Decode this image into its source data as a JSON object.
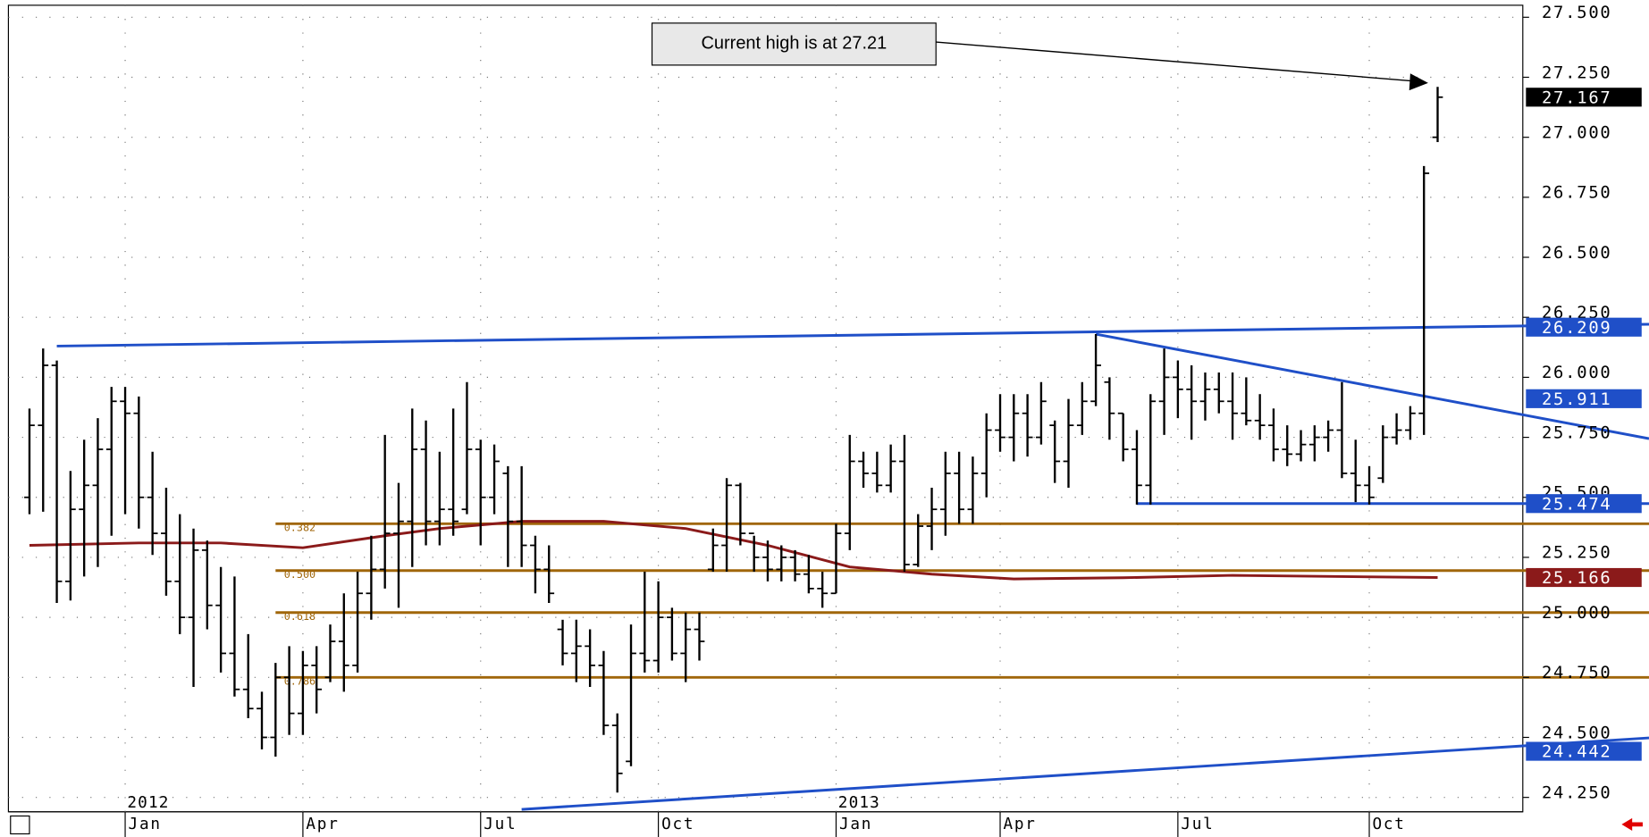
{
  "chart_data": {
    "type": "ohlc",
    "color": "#000000",
    "categories": [
      null,
      null,
      null,
      null,
      null,
      null,
      null,
      "Jan",
      null,
      null,
      null,
      null,
      null,
      null,
      null,
      null,
      null,
      null,
      null,
      null,
      "Apr",
      null,
      null,
      null,
      null,
      null,
      null,
      null,
      null,
      null,
      null,
      null,
      null,
      "Jul",
      null,
      null,
      null,
      null,
      null,
      null,
      null,
      null,
      null,
      null,
      null,
      null,
      "Oct",
      null,
      null,
      null,
      null,
      null,
      null,
      null,
      null,
      null,
      null,
      null,
      null,
      "Jan",
      null,
      null,
      null,
      null,
      null,
      null,
      null,
      null,
      null,
      null,
      null,
      "Apr",
      null,
      null,
      null,
      null,
      null,
      null,
      null,
      null,
      null,
      null,
      null,
      null,
      "Jul",
      null,
      null,
      null,
      null,
      null,
      null,
      null,
      null,
      null,
      null,
      null,
      null,
      null,
      "Oct",
      null,
      null,
      null,
      null,
      null
    ],
    "open": [
      25.5,
      25.8,
      26.05,
      25.15,
      25.45,
      25.55,
      25.7,
      25.9,
      25.85,
      25.5,
      25.35,
      25.15,
      25.0,
      25.28,
      25.05,
      24.85,
      24.7,
      24.62,
      24.5,
      24.75,
      24.6,
      24.8,
      24.75,
      24.9,
      24.8,
      25.1,
      25.2,
      25.35,
      25.4,
      25.7,
      25.4,
      25.45,
      25.45,
      25.7,
      25.5,
      25.6,
      25.4,
      25.3,
      25.2,
      24.95,
      24.85,
      24.88,
      24.8,
      24.55,
      24.4,
      24.85,
      24.82,
      25.0,
      24.85,
      24.95,
      25.2,
      25.3,
      25.55,
      25.35,
      25.25,
      25.2,
      25.25,
      25.18,
      25.12,
      25.1,
      25.35,
      25.65,
      25.6,
      25.55,
      25.65,
      25.22,
      25.38,
      25.45,
      25.6,
      25.45,
      25.6,
      25.78,
      25.75,
      25.85,
      25.75,
      25.8,
      25.65,
      25.8,
      25.9,
      25.98,
      25.85,
      25.7,
      25.55,
      25.9,
      26.0,
      25.95,
      25.9,
      25.95,
      25.9,
      25.85,
      25.82,
      25.8,
      25.7,
      25.68,
      25.72,
      25.75,
      25.78,
      25.6,
      25.55,
      25.58,
      25.75,
      25.78,
      25.85,
      27.0
    ],
    "high": [
      25.87,
      26.12,
      26.07,
      25.61,
      25.74,
      25.83,
      25.96,
      25.96,
      25.92,
      25.69,
      25.54,
      25.43,
      25.37,
      25.32,
      25.21,
      25.17,
      24.93,
      24.69,
      24.81,
      24.88,
      24.86,
      24.88,
      24.97,
      25.1,
      25.19,
      25.34,
      25.76,
      25.56,
      25.87,
      25.82,
      25.69,
      25.87,
      25.98,
      25.74,
      25.72,
      25.63,
      25.63,
      25.34,
      25.3,
      24.99,
      24.99,
      24.95,
      24.86,
      24.6,
      24.97,
      25.19,
      25.15,
      25.04,
      25.02,
      25.02,
      25.37,
      25.58,
      25.56,
      25.34,
      25.32,
      25.3,
      25.28,
      25.26,
      25.19,
      25.39,
      25.76,
      25.69,
      25.69,
      25.72,
      25.76,
      25.43,
      25.54,
      25.69,
      25.69,
      25.67,
      25.85,
      25.93,
      25.93,
      25.93,
      25.98,
      25.82,
      25.91,
      25.98,
      26.18,
      26.0,
      25.85,
      25.78,
      25.93,
      26.12,
      26.07,
      26.05,
      26.02,
      26.02,
      26.02,
      26.0,
      25.93,
      25.87,
      25.8,
      25.78,
      25.8,
      25.82,
      25.98,
      25.74,
      25.63,
      25.8,
      25.85,
      25.88,
      26.88,
      27.21
    ],
    "low": [
      25.43,
      25.44,
      25.06,
      25.07,
      25.17,
      25.21,
      25.34,
      25.43,
      25.37,
      25.26,
      25.09,
      24.93,
      24.71,
      24.95,
      24.77,
      24.67,
      24.58,
      24.45,
      24.42,
      24.51,
      24.51,
      24.6,
      24.73,
      24.69,
      24.77,
      24.99,
      25.12,
      25.04,
      25.21,
      25.3,
      25.3,
      25.34,
      25.43,
      25.3,
      25.43,
      25.21,
      25.21,
      25.1,
      25.06,
      24.8,
      24.73,
      24.71,
      24.51,
      24.27,
      24.38,
      24.77,
      24.77,
      24.82,
      24.73,
      24.82,
      25.19,
      25.19,
      25.3,
      25.19,
      25.15,
      25.15,
      25.15,
      25.1,
      25.04,
      25.1,
      25.28,
      25.54,
      25.52,
      25.52,
      25.19,
      25.21,
      25.28,
      25.34,
      25.39,
      25.39,
      25.5,
      25.69,
      25.65,
      25.67,
      25.72,
      25.56,
      25.54,
      25.76,
      25.88,
      25.74,
      25.65,
      25.47,
      25.47,
      25.76,
      25.83,
      25.74,
      25.82,
      25.85,
      25.74,
      25.8,
      25.74,
      25.65,
      25.63,
      25.65,
      25.65,
      25.69,
      25.58,
      25.48,
      25.47,
      25.56,
      25.72,
      25.74,
      25.76,
      26.98
    ],
    "close": [
      25.8,
      26.05,
      25.15,
      25.45,
      25.55,
      25.7,
      25.9,
      25.85,
      25.5,
      25.35,
      25.15,
      25.0,
      25.28,
      25.05,
      24.85,
      24.7,
      24.62,
      24.5,
      24.75,
      24.6,
      24.8,
      24.7,
      24.9,
      24.8,
      25.1,
      25.2,
      25.35,
      25.4,
      25.7,
      25.4,
      25.45,
      25.4,
      25.7,
      25.5,
      25.65,
      25.4,
      25.3,
      25.2,
      25.1,
      24.85,
      24.88,
      24.8,
      24.55,
      24.35,
      24.85,
      24.82,
      25.0,
      24.85,
      24.95,
      24.9,
      25.3,
      25.55,
      25.35,
      25.25,
      25.2,
      25.25,
      25.18,
      25.12,
      25.1,
      25.35,
      25.65,
      25.6,
      25.55,
      25.65,
      25.22,
      25.38,
      25.45,
      25.6,
      25.45,
      25.6,
      25.78,
      25.75,
      25.85,
      25.75,
      25.9,
      25.65,
      25.8,
      25.9,
      26.05,
      25.85,
      25.7,
      25.55,
      25.9,
      26.0,
      25.95,
      25.9,
      25.95,
      25.9,
      25.85,
      25.82,
      25.8,
      25.7,
      25.68,
      25.72,
      25.75,
      25.78,
      25.6,
      25.55,
      25.5,
      25.75,
      25.78,
      25.85,
      26.85,
      27.167
    ],
    "xlim": [
      -1.54,
      109.23
    ],
    "ylim": [
      24.19,
      27.55
    ],
    "yticks": [
      {
        "value": 24.25,
        "label": "24.250"
      },
      {
        "value": 24.5,
        "label": "24.500"
      },
      {
        "value": 24.75,
        "label": "24.750"
      },
      {
        "value": 25,
        "label": "25.000"
      },
      {
        "value": 25.25,
        "label": "25.250"
      },
      {
        "value": 25.5,
        "label": "25.500"
      },
      {
        "value": 25.75,
        "label": "25.750"
      },
      {
        "value": 26,
        "label": "26.000"
      },
      {
        "value": 26.25,
        "label": "26.250"
      },
      {
        "value": 26.5,
        "label": "26.500"
      },
      {
        "value": 26.75,
        "label": "26.750"
      },
      {
        "value": 27,
        "label": "27.000"
      },
      {
        "value": 27.25,
        "label": "27.250"
      },
      {
        "value": 27.5,
        "label": "27.500"
      }
    ],
    "grid": true,
    "moving_average": {
      "color": "#8b1a1a",
      "x": [
        0,
        8,
        14,
        20,
        26,
        30,
        36,
        42,
        48,
        54,
        60,
        66,
        72,
        80,
        88,
        96,
        103
      ],
      "values": [
        25.3,
        25.31,
        25.31,
        25.29,
        25.34,
        25.37,
        25.4,
        25.4,
        25.37,
        25.3,
        25.21,
        25.18,
        25.16,
        25.165,
        25.175,
        25.17,
        25.166
      ]
    },
    "trendlines": [
      {
        "color": "#1f4fc8",
        "x": [
          2,
          103
        ],
        "values": [
          26.13,
          26.209
        ]
      },
      {
        "color": "#1f4fc8",
        "x": [
          78,
          103
        ],
        "values": [
          26.18,
          25.911
        ]
      },
      {
        "color": "#1f4fc8",
        "x": [
          81,
          103
        ],
        "values": [
          25.474,
          25.474
        ]
      },
      {
        "color": "#1f4fc8",
        "x": [
          36,
          103
        ],
        "values": [
          24.2,
          24.442
        ]
      }
    ],
    "fib_levels": {
      "color": "#a0660a",
      "start": 18,
      "levels": [
        {
          "label": "0.382",
          "value": 25.39
        },
        {
          "label": "0.500",
          "value": 25.195
        },
        {
          "label": "0.618",
          "value": 25.02
        },
        {
          "label": "0.786",
          "value": 24.75
        }
      ]
    },
    "annotations": {
      "year_labels": [
        {
          "text": "2012",
          "x": 7
        },
        {
          "text": "2013",
          "x": 59
        }
      ],
      "callout": "Current high is at 27.21"
    }
  }
}
